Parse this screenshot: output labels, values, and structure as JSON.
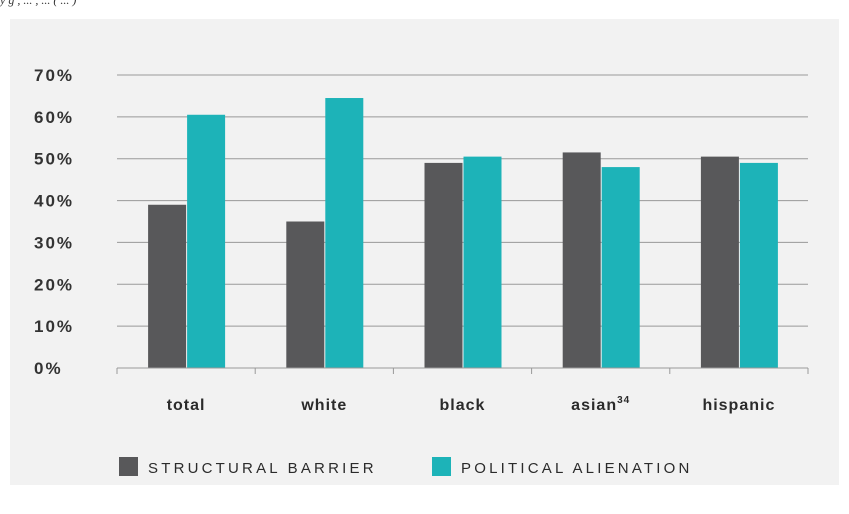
{
  "header_fragment": "y g   , ... ,   ... (   ... )",
  "colors": {
    "panel_bg": "#f2f2f2",
    "structural_barrier": "#58585a",
    "political_alienation": "#1db3b8",
    "grid": "#999999"
  },
  "chart_data": {
    "type": "bar",
    "categories": [
      "total",
      "white",
      "black",
      "asian",
      "hispanic"
    ],
    "category_superscripts": [
      "",
      "",
      "",
      "34",
      ""
    ],
    "series": [
      {
        "name": "STRUCTURAL BARRIER",
        "color": "#58585a",
        "values": [
          39,
          35,
          49,
          51.5,
          50.5
        ]
      },
      {
        "name": "POLITICAL ALIENATION",
        "color": "#1db3b8",
        "values": [
          60.5,
          64.5,
          50.5,
          48,
          49
        ]
      }
    ],
    "yticks": [
      "0%",
      "10%",
      "20%",
      "30%",
      "40%",
      "50%",
      "60%",
      "70%"
    ],
    "ylim": [
      0,
      70
    ],
    "grid": true,
    "legend_position": "bottom",
    "title": "",
    "xlabel": "",
    "ylabel": ""
  }
}
